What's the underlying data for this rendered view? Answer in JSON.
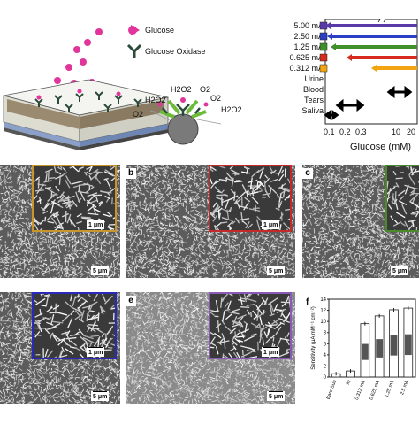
{
  "schematic": {
    "legend_glucose": "Glucose",
    "legend_oxidase": "Glucose Oxidase",
    "species": {
      "h2o2_a": "H2O2",
      "h2o2_b": "H2O2",
      "h2o2_c": "H2O2",
      "o2_a": "O2",
      "o2_b": "O2",
      "o2_c": "O2"
    },
    "colors": {
      "glucose": "#e0359a",
      "oxidase": "#2c4a3a",
      "enzyme_body": "#6dbb3a"
    }
  },
  "range_chart": {
    "currents": [
      {
        "label": "5.00 mA",
        "color": "#5a3aa8"
      },
      {
        "label": "2.50 mA",
        "color": "#2a3fc4"
      },
      {
        "label": "1.25 mA",
        "color": "#3f8f2a"
      },
      {
        "label": "0.625 mA",
        "color": "#d62a1c"
      },
      {
        "label": "0.312 mA",
        "color": "#f2a413"
      }
    ],
    "fluids": [
      "Urine",
      "Blood",
      "Tears",
      "Saliva"
    ],
    "ticks": [
      "0.1",
      "0.2",
      "0.3",
      "10",
      "20"
    ],
    "xlabel": "Glucose (mM)"
  },
  "sem_panels": [
    {
      "letter": "",
      "inset_scale": "1 μm",
      "main_scale": "5 μm",
      "inset_color": "#c8962c"
    },
    {
      "letter": "b",
      "inset_scale": "1 μm",
      "main_scale": "5 μm",
      "inset_color": "#c42a2a"
    },
    {
      "letter": "c",
      "inset_scale": "",
      "main_scale": "5 μm",
      "inset_color": "#4a8a2a"
    },
    {
      "letter": "",
      "inset_scale": "1 μm",
      "main_scale": "5 μm",
      "inset_color": "#2a2ab8"
    },
    {
      "letter": "e",
      "inset_scale": "1 μm",
      "main_scale": "5 μm",
      "inset_color": "#8a5ab8"
    }
  ],
  "chart_data": {
    "type": "bar",
    "panel_letter": "f",
    "categories": [
      "Bare Sub",
      "Ni",
      "0.312 mA",
      "0.625 mA",
      "1.25 mA",
      "2.5 mA"
    ],
    "values": [
      0.6,
      1.1,
      9.6,
      11.0,
      12.1,
      12.4
    ],
    "ylabel": "Sensitivity (μA mM⁻¹ cm⁻²)",
    "yticks": [
      "0",
      "2",
      "4",
      "6",
      "8",
      "10",
      "12",
      "14"
    ],
    "ylim": [
      0,
      14
    ]
  }
}
